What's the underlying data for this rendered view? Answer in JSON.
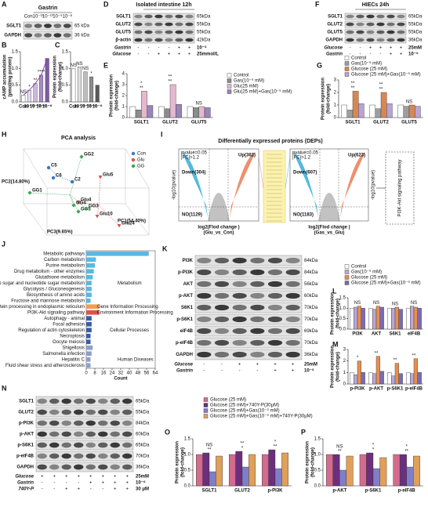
{
  "blots": {
    "A": {
      "label": "A",
      "title": "Gastrin",
      "lanes": [
        "Con",
        "10⁻¹¹",
        "10⁻¹⁰",
        "10⁻⁹",
        "10⁻⁸"
      ],
      "rows": [
        {
          "name": "SGLT1",
          "size": "65 kDa"
        },
        {
          "name": "GAPDH",
          "size": "36 kDa"
        }
      ]
    },
    "D": {
      "label": "D",
      "title": "Isolated intestine  12h",
      "rows": [
        {
          "name": "SGLT1",
          "size": "65kDa"
        },
        {
          "name": "GLUT2",
          "size": "55kDa"
        },
        {
          "name": "GLUT5",
          "size": "55kDa"
        },
        {
          "name": "β-actin",
          "size": "42kDa"
        }
      ],
      "conditions": [
        {
          "name": "Gastrin",
          "marks": [
            "-",
            "-",
            "-",
            "-",
            "+",
            "+"
          ],
          "dose": "10⁻⁹"
        },
        {
          "name": "Glucose",
          "marks": [
            "-",
            "-",
            "+",
            "+",
            "+",
            "+"
          ],
          "dose": "25mmol/L"
        }
      ]
    },
    "F": {
      "label": "F",
      "title": "HIECs  24h",
      "rows": [
        {
          "name": "SGLT1",
          "size": "65kDa"
        },
        {
          "name": "GLUT2",
          "size": "55kDa"
        },
        {
          "name": "GLUT5",
          "size": "55kDa"
        },
        {
          "name": "GAPDH",
          "size": "36kDa"
        }
      ],
      "conditions": [
        {
          "name": "Glucose",
          "marks": [
            "-",
            "-",
            "+",
            "+",
            "+",
            "+"
          ],
          "dose": "25mM"
        },
        {
          "name": "Gastrin",
          "marks": [
            "-",
            "-",
            "-",
            "-",
            "+",
            "+"
          ],
          "dose": "10⁻⁹"
        }
      ]
    },
    "K": {
      "label": "K",
      "rows": [
        {
          "name": "PI3K",
          "size": "84kDa"
        },
        {
          "name": "p-PI3K",
          "size": "84kDa"
        },
        {
          "name": "AKT",
          "size": "56kDa"
        },
        {
          "name": "p-AKT",
          "size": "60kDa"
        },
        {
          "name": "S6K1",
          "size": "70kDa"
        },
        {
          "name": "p-S6K1",
          "size": "70kDa"
        },
        {
          "name": "eIF4B",
          "size": "69kDa"
        },
        {
          "name": "p-eIF4B",
          "size": "70kDa"
        },
        {
          "name": "GAPDH",
          "size": "36kDa"
        }
      ],
      "conditions": [
        {
          "name": "Glucose",
          "marks": [
            "-",
            "-",
            "+",
            "+",
            "+",
            "+"
          ],
          "dose": "25mM"
        },
        {
          "name": "Gastrin",
          "marks": [
            "-",
            "-",
            "-",
            "-",
            "+",
            "+"
          ],
          "dose": "10⁻⁹"
        }
      ]
    },
    "N": {
      "label": "N",
      "rows": [
        {
          "name": "SGLT1",
          "size": "65kDa"
        },
        {
          "name": "GLUT2",
          "size": "55kDa"
        },
        {
          "name": "p-PI3K",
          "size": "84kDa"
        },
        {
          "name": "p-AKT",
          "size": "60kDa"
        },
        {
          "name": "p-S6K1",
          "size": "65kDa"
        },
        {
          "name": "p-eIF4B",
          "size": "70kDa"
        },
        {
          "name": "GAPDH",
          "size": "36kDa"
        }
      ],
      "conditions": [
        {
          "name": "Glucose",
          "marks": [
            "+",
            "+",
            "+",
            "+",
            "+",
            "+",
            "+",
            "+"
          ],
          "dose": "25mM"
        },
        {
          "name": "Gastrin",
          "marks": [
            "-",
            "-",
            "-",
            "-",
            "+",
            "+",
            "+",
            "+"
          ],
          "dose": "10⁻⁹"
        },
        {
          "name": "740Y-P",
          "marks": [
            "-",
            "-",
            "+",
            "+",
            "-",
            "-",
            "+",
            "+"
          ],
          "dose": "30 μM"
        }
      ]
    }
  },
  "pca": {
    "label": "H",
    "title": "PCA analysis",
    "axes": [
      "PC1(54.40%)",
      "PC2(14.80%)",
      "PC3(9.65%)"
    ],
    "groups": [
      {
        "name": "Con",
        "color": "#3b78c4",
        "points": [
          "C5",
          "C6",
          "C2"
        ]
      },
      {
        "name": "Glu",
        "color": "#d9534f",
        "points": [
          "Glu5",
          "Glu4",
          "Glu10",
          "Glu24"
        ]
      },
      {
        "name": "GG",
        "color": "#3aa657",
        "points": [
          "GG1",
          "GG2",
          "GG4",
          "GG5",
          "GG3"
        ]
      }
    ]
  },
  "volcano": {
    "label": "I",
    "title": "Differentially expressed proteins (DEPs)",
    "ylabel": "-log10(pvalue)",
    "threshold": [
      "pvalue=0.05",
      "|FC|>1.2"
    ],
    "pathway": "PI3K-Akt signaling pathway",
    "down_color": "#2aa7d6",
    "up_color": "#e8744a",
    "panels": [
      {
        "down": "Down(304)",
        "up": "Up(362)",
        "no": "NO(1129)",
        "xlabel": "log2(Flod change )",
        "comparison": "(Glu_vs_Con)"
      },
      {
        "down": "Down(607)",
        "up": "Up(623)",
        "no": "NO(1183)",
        "xlabel": "log2(Flod change )",
        "comparison": "(Gas_vs_Glu)"
      }
    ]
  },
  "chart_data": [
    {
      "type": "bar",
      "label": "B",
      "ylabel": [
        "cAMP accumulation",
        "(pmol/mg protein)"
      ],
      "categories": [
        "Con",
        "10⁻¹¹",
        "10⁻¹⁰",
        "10⁻⁹",
        "10⁻⁸"
      ],
      "values": [
        0.2,
        0.35,
        0.55,
        0.8,
        1.3
      ],
      "colors": [
        "#ffffff",
        "#e6dcef",
        "#cdb6de",
        "#a98bc6",
        "#7d5ba6"
      ],
      "line_color": "#8e44ad",
      "ylim": [
        0,
        1.5
      ],
      "yticks": [
        {
          "value": 0,
          "label": "0.0"
        },
        0.5,
        {
          "value": 1,
          "label": "1.0"
        },
        1.5
      ],
      "annotations": [
        "NS",
        "*",
        "**",
        "****"
      ]
    },
    {
      "type": "bar",
      "label": "C",
      "ylabel": [
        "Protein expression",
        "(fold-change)"
      ],
      "categories": [
        "Con",
        "10⁻¹¹",
        "10⁻¹⁰",
        "10⁻⁹",
        "10⁻⁸"
      ],
      "values": [
        1.0,
        1.05,
        0.9,
        0.75,
        0.5
      ],
      "colors": [
        "#ffffff",
        "#e0e0e0",
        "#bdbdbd",
        "#8c8c8c",
        "#5a5a5a"
      ],
      "ylim": [
        0,
        1.5
      ],
      "yticks": [
        {
          "value": 0,
          "label": "0.0"
        },
        0.5,
        {
          "value": 1,
          "label": "1.0"
        },
        1.5
      ],
      "annotations": [
        "NS",
        "NS",
        "NS",
        "*"
      ]
    },
    {
      "type": "bar",
      "label": "E",
      "ylabel": [
        "Protein expression",
        "(fold-change)"
      ],
      "legend": true,
      "categories": [
        "SGLT1",
        "GLUT2",
        "GLUT5"
      ],
      "series": [
        {
          "name": "Control",
          "color": "#ffffff",
          "values": [
            1.0,
            1.0,
            1.0
          ]
        },
        {
          "name": "Gas(10⁻⁹ mM)",
          "color": "#8c8c8c",
          "values": [
            0.7,
            0.8,
            0.9
          ]
        },
        {
          "name": "Glu(25 mM)",
          "color": "#e4b9cf",
          "values": [
            2.4,
            3.0,
            1.0
          ]
        },
        {
          "name": "Glu(25 mM)+Gas(10⁻⁹ mM)",
          "color": "#9a84b9",
          "values": [
            1.1,
            1.2,
            0.9
          ]
        }
      ],
      "ylim": [
        0,
        4
      ],
      "yticks": [
        0,
        1,
        2,
        3,
        4
      ],
      "annotations": [
        "**",
        "**",
        "NS",
        "*",
        "**"
      ]
    },
    {
      "type": "bar",
      "label": "G",
      "ylabel": [
        "Protein expression",
        "(fold-change)"
      ],
      "legend": true,
      "categories": [
        "SGLT1",
        "GLUT2",
        "GLUT5"
      ],
      "series": [
        {
          "name": "Control",
          "color": "#ffffff",
          "values": [
            1.0,
            1.0,
            1.0
          ]
        },
        {
          "name": "Gas(10⁻⁹ mM)",
          "color": "#9e9e9e",
          "values": [
            0.6,
            0.7,
            0.9
          ]
        },
        {
          "name": "Glucose (25 mM)",
          "color": "#d9874f",
          "values": [
            2.1,
            2.0,
            1.0
          ]
        },
        {
          "name": "Glucose (25 mM)+Gas(10⁻⁹ mM)",
          "color": "#b9a3d6",
          "values": [
            1.1,
            1.1,
            0.9
          ]
        }
      ],
      "ylim": [
        0,
        3
      ],
      "yticks": [
        0,
        1,
        2,
        3
      ],
      "annotations": [
        "**",
        "**",
        "NS",
        "**",
        "**"
      ]
    },
    {
      "type": "hbar",
      "label": "J",
      "xlabel": "Count",
      "categories": [
        "Metabolic pathways",
        "Carbon metabolism",
        "Purine metabolism",
        "Drug metabolism - other enzymes",
        "Glutathione metabolism",
        "Amino sugar and nucleotide sugar metabolism",
        "Glycolysis / Gluconeogenesis",
        "Biosynthesis of amino acids",
        "Fructose and mannose metabolism",
        "Protein processing in endoplasmic reticulum",
        "PI3K-Akt signaling pathway",
        "Autophagy - animal",
        "Focal adhesion",
        "Regulation of actin cytoskeleton",
        "Necroptosis",
        "Oocyte meiosis",
        "Shigellosis",
        "Salmonella infection",
        "Hepatitis C",
        "Fluid shear stress and atherosclerosis"
      ],
      "values": [
        58,
        9,
        8,
        7,
        6,
        5,
        5,
        5,
        4,
        12,
        12,
        5,
        5,
        5,
        4,
        4,
        6,
        5,
        4,
        4
      ],
      "bar_colors": [
        "#5bb8e0",
        "#5bb8e0",
        "#5bb8e0",
        "#5bb8e0",
        "#5bb8e0",
        "#5bb8e0",
        "#5bb8e0",
        "#5bb8e0",
        "#5bb8e0",
        "#f0a04b",
        "#d9534f",
        "#3b5ba5",
        "#3b5ba5",
        "#3b5ba5",
        "#3b5ba5",
        "#3b5ba5",
        "#8ea0c8",
        "#8ea0c8",
        "#8ea0c8",
        "#8ea0c8"
      ],
      "group_labels": [
        {
          "name": "Metabolism",
          "color": "#2f8fc0"
        },
        {
          "name": "Gene Information Processing",
          "color": "#e08a2c"
        },
        {
          "name": "Environment Information Processing",
          "color": "#c0392b"
        },
        {
          "name": "Cellular Processes",
          "color": "#3b5ba5"
        },
        {
          "name": "Human Diseases",
          "color": "#7a8cb8"
        }
      ],
      "xlim": [
        0,
        64
      ],
      "xticks": [
        0,
        8,
        16,
        24,
        32,
        40,
        48,
        56,
        64
      ]
    },
    {
      "type": "bar",
      "label": "L",
      "ylabel": [
        "Protein expression",
        "(fold-change)"
      ],
      "legend": true,
      "categories": [
        "PI3K",
        "AKT",
        "S6K1",
        "eIF4B"
      ],
      "series": [
        {
          "name": "Control",
          "color": "#ffffff",
          "values": [
            1.0,
            1.0,
            1.0,
            1.0
          ]
        },
        {
          "name": "Gas(10⁻⁹ mM)",
          "color": "#b9a9d6",
          "values": [
            1.05,
            0.95,
            1.0,
            1.1
          ]
        },
        {
          "name": "Glucose (25 mM)",
          "color": "#e88f4f",
          "values": [
            1.1,
            1.1,
            1.05,
            1.05
          ]
        },
        {
          "name": "Glucose (25 mM)+Gas(10⁻⁹ mM)",
          "color": "#7a6bb5",
          "values": [
            1.0,
            1.05,
            0.95,
            1.0
          ]
        }
      ],
      "ylim": [
        0,
        1.5
      ],
      "yticks": [
        {
          "value": 0,
          "label": "0.0"
        },
        0.5,
        {
          "value": 1,
          "label": "1.0"
        },
        1.5
      ],
      "annotations": [
        "NS",
        "NS",
        "NS",
        "NS"
      ]
    },
    {
      "type": "bar",
      "label": "M",
      "ylabel": [
        "Protein expression",
        "(fold-change)"
      ],
      "categories": [
        "p-PI3K",
        "p-AKT",
        "p-S6K1",
        "p-eIF4B"
      ],
      "series": [
        {
          "name": "Control",
          "color": "#ffffff",
          "values": [
            1.0,
            1.0,
            1.0,
            1.0
          ]
        },
        {
          "name": "Gas(10⁻⁹ mM)",
          "color": "#b9a9d6",
          "values": [
            0.8,
            0.9,
            0.7,
            0.9
          ]
        },
        {
          "name": "Glucose (25 mM)",
          "color": "#e88f4f",
          "values": [
            2.0,
            2.4,
            1.8,
            2.2
          ]
        },
        {
          "name": "Glucose (25 mM)+Gas(10⁻⁹ mM)",
          "color": "#7a6bb5",
          "values": [
            1.0,
            1.1,
            0.9,
            1.0
          ]
        }
      ],
      "ylim": [
        0,
        3
      ],
      "yticks": [
        0,
        1,
        2,
        3
      ],
      "annotations": [
        "*",
        "**",
        "**",
        "**"
      ]
    },
    {
      "type": "bar",
      "label": "O",
      "ylabel": [
        "Protein expression",
        "(fold-change)"
      ],
      "legend": true,
      "categories": [
        "SGLT1",
        "GLUT2",
        "p-PI3K"
      ],
      "series": [
        {
          "name": "Glucose (25 mM)",
          "color": "#d36b8e",
          "values": [
            1.0,
            1.0,
            1.0
          ]
        },
        {
          "name": "Glucose (25 mM)+740Y-P(30μM)",
          "color": "#6b2f7d",
          "values": [
            1.05,
            1.1,
            1.15
          ]
        },
        {
          "name": "Glucose (25 mM)+Gas(10⁻⁹ mM)",
          "color": "#7f7fc9",
          "values": [
            0.45,
            0.6,
            0.55
          ]
        },
        {
          "name": "Glucose (25 mM)+Gas(10⁻⁹ mM)+740Y-P(30μM)",
          "color": "#e0a05a",
          "values": [
            0.95,
            1.0,
            1.05
          ]
        }
      ],
      "ylim": [
        0,
        1.5
      ],
      "yticks": [
        {
          "value": 0,
          "label": "0.0"
        },
        0.5,
        {
          "value": 1,
          "label": "1.0"
        },
        1.5
      ],
      "annotations": [
        "**",
        "*",
        "**",
        "NS",
        "**",
        "*"
      ]
    },
    {
      "type": "bar",
      "label": "P",
      "ylabel": [
        "Protein expression",
        "(fold-change)"
      ],
      "categories": [
        "p-AKT",
        "p-S6K1",
        "p-eIF4B"
      ],
      "series": [
        {
          "name": "Glucose (25 mM)",
          "color": "#d36b8e",
          "values": [
            1.0,
            1.0,
            1.0
          ]
        },
        {
          "name": "Glucose (25 mM)+740Y-P(30μM)",
          "color": "#6b2f7d",
          "values": [
            1.0,
            1.05,
            1.0
          ]
        },
        {
          "name": "Glucose (25 mM)+Gas(10⁻⁹ mM)",
          "color": "#7f7fc9",
          "values": [
            0.5,
            0.55,
            0.6
          ]
        },
        {
          "name": "Glucose (25 mM)+Gas(10⁻⁹ mM)+740Y-P(30μM)",
          "color": "#e0a05a",
          "values": [
            0.95,
            0.9,
            0.95
          ]
        }
      ],
      "ylim": [
        0,
        1.5
      ],
      "yticks": [
        {
          "value": 0,
          "label": "0.0"
        },
        0.5,
        {
          "value": 1,
          "label": "1.0"
        },
        1.5
      ],
      "annotations": [
        "**",
        "*",
        "**",
        "NS",
        "*",
        "*"
      ]
    }
  ]
}
